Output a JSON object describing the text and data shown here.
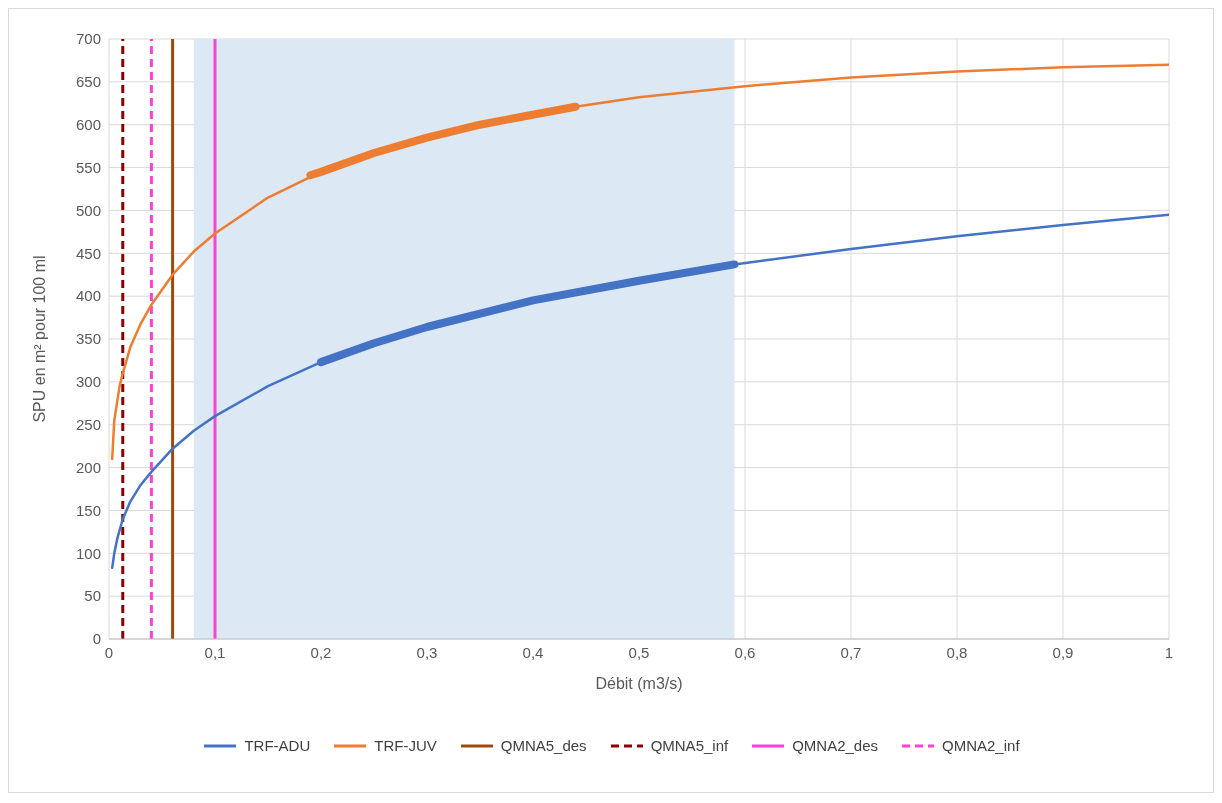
{
  "chart_data": {
    "type": "line",
    "xlabel": "Débit (m3/s)",
    "ylabel": "SPU en m² pour 100 ml",
    "xlim": [
      0,
      1
    ],
    "xticks": [
      0,
      {
        "value": 0.1,
        "label": "0,1"
      },
      {
        "value": 0.2,
        "label": "0,2"
      },
      {
        "value": 0.3,
        "label": "0,3"
      },
      {
        "value": 0.4,
        "label": "0,4"
      },
      {
        "value": 0.5,
        "label": "0,5"
      },
      {
        "value": 0.6,
        "label": "0,6"
      },
      {
        "value": 0.7,
        "label": "0,7"
      },
      {
        "value": 0.8,
        "label": "0,8"
      },
      {
        "value": 0.9,
        "label": "0,9"
      },
      1
    ],
    "ylim": [
      0,
      700
    ],
    "yticks": [
      0,
      50,
      100,
      150,
      200,
      250,
      300,
      350,
      400,
      450,
      500,
      550,
      600,
      650,
      700
    ],
    "grid": true,
    "legend": "bottom",
    "line_style": "solid",
    "marker": "none",
    "series": [
      {
        "name": "TRF-ADU",
        "color": "#4472c4",
        "x": [
          0.003,
          0.005,
          0.008,
          0.013,
          0.02,
          0.03,
          0.04,
          0.06,
          0.08,
          0.1,
          0.15,
          0.2,
          0.25,
          0.3,
          0.4,
          0.5,
          0.59,
          0.7,
          0.8,
          0.9,
          1
        ],
        "values": [
          83,
          100,
          118,
          140,
          160,
          180,
          195,
          222,
          243,
          260,
          295,
          323,
          345,
          364,
          395,
          418,
          437,
          455,
          470,
          483,
          495
        ]
      },
      {
        "name": "TRF-JUV",
        "color": "#ed7d31",
        "x": [
          0.003,
          0.005,
          0.01,
          0.013,
          0.02,
          0.03,
          0.04,
          0.06,
          0.08,
          0.1,
          0.15,
          0.2,
          0.25,
          0.3,
          0.35,
          0.44,
          0.5,
          0.6,
          0.7,
          0.8,
          0.9,
          1
        ],
        "values": [
          210,
          255,
          295,
          310,
          340,
          368,
          390,
          425,
          452,
          473,
          515,
          545,
          567,
          585,
          600,
          621,
          632,
          645,
          655,
          662,
          667,
          670
        ]
      },
      {
        "color": "#4472c4",
        "x": [
          0.2,
          0.25,
          0.3,
          0.4,
          0.5,
          0.59
        ],
        "values": [
          323,
          345,
          364,
          395,
          418,
          437
        ]
      },
      {
        "color": "#ed7d31",
        "x": [
          0.19,
          0.2,
          0.25,
          0.3,
          0.35,
          0.44
        ],
        "values": [
          541,
          545,
          567,
          585,
          600,
          621
        ]
      }
    ],
    "ref_lines": [
      {
        "axis": "x",
        "value": 0.06,
        "label": "QMNA5_des",
        "color": "#9c4a0e",
        "line_style": "solid"
      },
      {
        "axis": "x",
        "value": 0.013,
        "label": "QMNA5_inf",
        "color": "#8b0000",
        "line_style": "dashed"
      },
      {
        "axis": "x",
        "value": 0.1,
        "label": "QMNA2_des",
        "color": "#ff3fd5",
        "line_style": "solid"
      },
      {
        "axis": "x",
        "value": 0.04,
        "label": "QMNA2_inf",
        "color": "#ff3fd5",
        "line_style": "dashed"
      }
    ],
    "bands": [
      {
        "axis": "x",
        "from": 0.08,
        "to": 0.59,
        "color": "#dde8f5"
      }
    ]
  }
}
